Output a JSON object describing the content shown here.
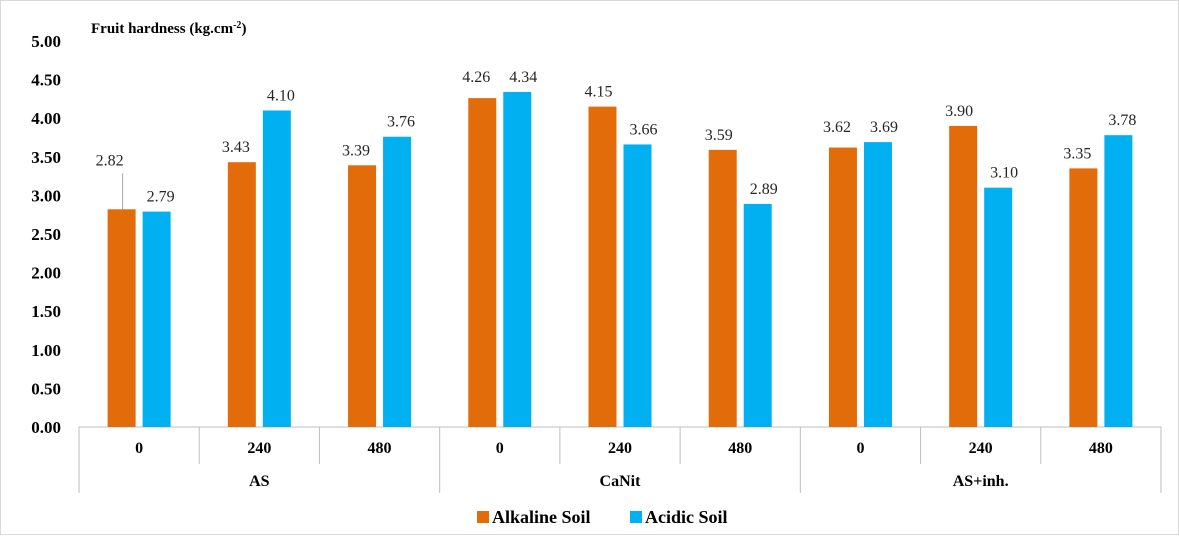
{
  "chart_data": {
    "type": "bar",
    "ylabel": "Fruit hardness (kg.cm",
    "ylabel_sup": "-2",
    "ylabel_tail": ")",
    "ylim": [
      0,
      5
    ],
    "yticks": [
      "0.00",
      "0.50",
      "1.00",
      "1.50",
      "2.00",
      "2.50",
      "3.00",
      "3.50",
      "4.00",
      "4.50",
      "5.00"
    ],
    "groups": [
      "AS",
      "CaNit",
      "AS+inh."
    ],
    "categories": [
      "0",
      "240",
      "480",
      "0",
      "240",
      "480",
      "0",
      "240",
      "480"
    ],
    "series": [
      {
        "name": "Alkaline Soil",
        "color": "#E36C0A",
        "values": [
          2.82,
          3.43,
          3.39,
          4.26,
          4.15,
          3.59,
          3.62,
          3.9,
          3.35
        ],
        "labels": [
          "2.82",
          "3.43",
          "3.39",
          "4.26",
          "4.15",
          "3.59",
          "3.62",
          "3.90",
          "3.35"
        ]
      },
      {
        "name": "Acidic Soil",
        "color": "#00B0F0",
        "values": [
          2.79,
          4.1,
          3.76,
          4.34,
          3.66,
          2.89,
          3.69,
          3.1,
          3.78
        ],
        "labels": [
          "2.79",
          "4.10",
          "3.76",
          "4.34",
          "3.66",
          "2.89",
          "3.69",
          "3.10",
          "3.78"
        ]
      }
    ],
    "grid": false,
    "legend_position": "bottom"
  }
}
